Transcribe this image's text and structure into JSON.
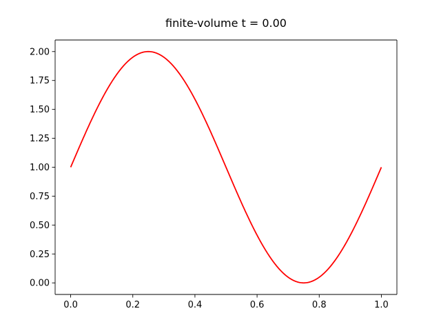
{
  "chart_data": {
    "type": "line",
    "title": "finite-volume t = 0.00",
    "xlabel": "",
    "ylabel": "",
    "xlim": [
      -0.05,
      1.05
    ],
    "ylim": [
      -0.1,
      2.1
    ],
    "x_ticks": [
      0.0,
      0.2,
      0.4,
      0.6,
      0.8,
      1.0
    ],
    "x_tick_labels": [
      "0.0",
      "0.2",
      "0.4",
      "0.6",
      "0.8",
      "1.0"
    ],
    "y_ticks": [
      0.0,
      0.25,
      0.5,
      0.75,
      1.0,
      1.25,
      1.5,
      1.75,
      2.0
    ],
    "y_tick_labels": [
      "0.00",
      "0.25",
      "0.50",
      "0.75",
      "1.00",
      "1.25",
      "1.50",
      "1.75",
      "2.00"
    ],
    "grid": false,
    "legend": "none",
    "series": [
      {
        "color": "#ff0000",
        "x": [
          0.0,
          0.05,
          0.1,
          0.15,
          0.2,
          0.25,
          0.3,
          0.35,
          0.4,
          0.45,
          0.5,
          0.55,
          0.6,
          0.65,
          0.7,
          0.75,
          0.8,
          0.85,
          0.9,
          0.95,
          1.0
        ],
        "y": [
          1.0,
          1.309,
          1.588,
          1.809,
          1.951,
          2.0,
          1.951,
          1.809,
          1.588,
          1.309,
          1.0,
          0.691,
          0.412,
          0.191,
          0.049,
          0.0,
          0.049,
          0.191,
          0.412,
          0.691,
          1.0
        ]
      }
    ]
  }
}
